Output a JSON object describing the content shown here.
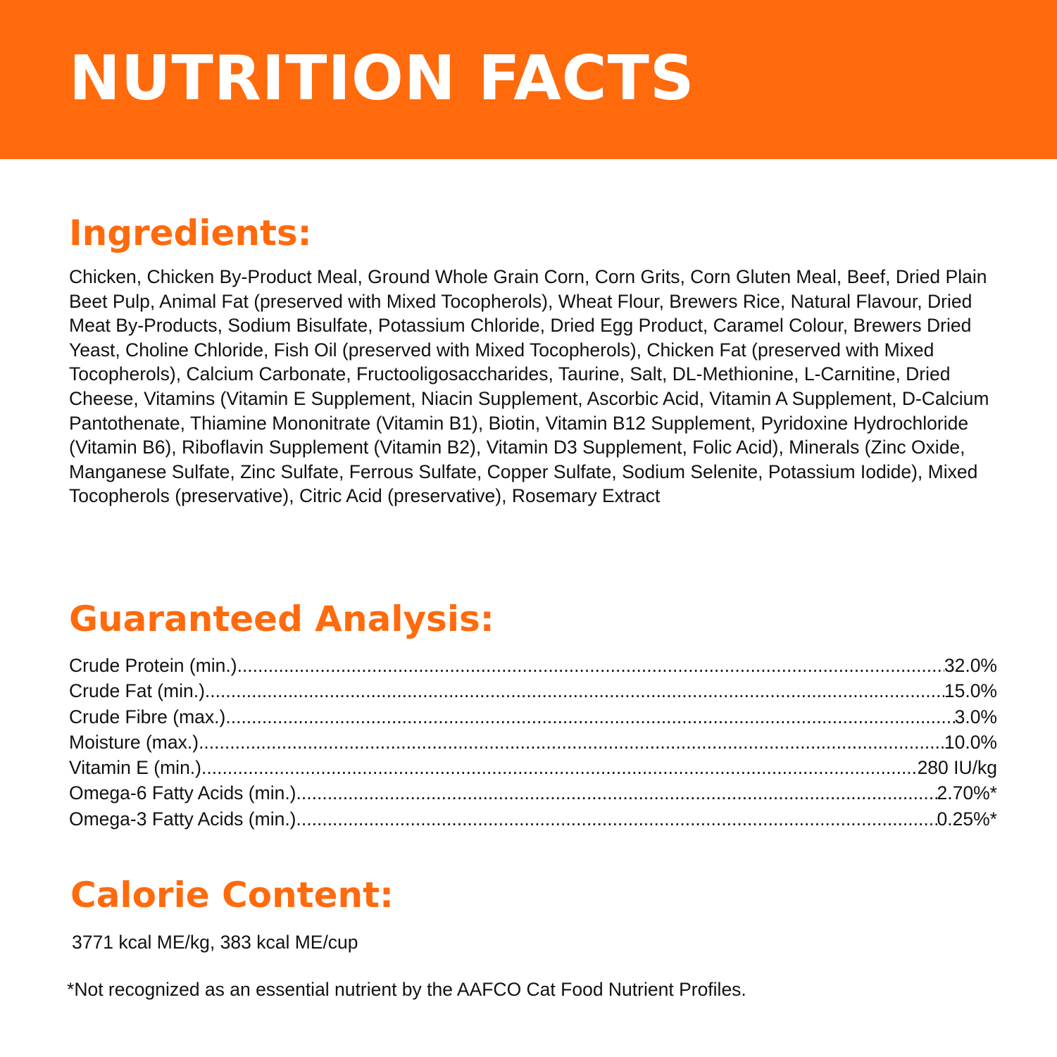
{
  "banner": {
    "title": "NUTRITION FACTS",
    "color": "#ff6a0d"
  },
  "ingredients": {
    "heading": "Ingredients:",
    "text": "Chicken, Chicken By-Product Meal, Ground Whole Grain Corn, Corn Grits, Corn Gluten Meal, Beef, Dried Plain Beet Pulp, Animal Fat (preserved with Mixed Tocopherols), Wheat Flour, Brewers Rice, Natural Flavour, Dried Meat By-Products, Sodium Bisulfate, Potassium Chloride, Dried Egg Product, Caramel Colour, Brewers Dried Yeast, Choline Chloride, Fish Oil (preserved with Mixed Tocopherols), Chicken Fat (preserved with Mixed Tocopherols), Calcium Carbonate, Fructooligosaccharides, Taurine, Salt, DL-Methionine, L-Carnitine, Dried Cheese, Vitamins (Vitamin E Supplement, Niacin Supplement, Ascorbic Acid, Vitamin A Supplement, D-Calcium Pantothenate, Thiamine Mononitrate (Vitamin B1), Biotin, Vitamin B12 Supplement, Pyridoxine Hydrochloride (Vitamin B6), Riboflavin Supplement (Vitamin B2), Vitamin D3 Supplement, Folic Acid), Minerals (Zinc Oxide, Manganese Sulfate, Zinc Sulfate, Ferrous Sulfate, Copper Sulfate, Sodium Selenite, Potassium Iodide), Mixed Tocopherols (preservative), Citric Acid (preservative), Rosemary Extract"
  },
  "analysis": {
    "heading": "Guaranteed Analysis:",
    "rows": [
      {
        "label": "Crude Protein (min.)",
        "value": "32.0%"
      },
      {
        "label": "Crude Fat (min.)",
        "value": "15.0%"
      },
      {
        "label": "Crude Fibre (max.)",
        "value": "3.0%"
      },
      {
        "label": "Moisture (max.)",
        "value": "10.0%"
      },
      {
        "label": "Vitamin E (min.)",
        "value": "280 IU/kg"
      },
      {
        "label": "Omega-6 Fatty Acids (min.)",
        "value": "2.70%*"
      },
      {
        "label": "Omega-3 Fatty Acids (min.)",
        "value": "0.25%*"
      }
    ]
  },
  "calorie": {
    "heading": "Calorie Content:",
    "text": "3771 kcal ME/kg, 383 kcal ME/cup"
  },
  "footnote": "*Not recognized as an essential nutrient by the AAFCO Cat Food Nutrient Profiles."
}
